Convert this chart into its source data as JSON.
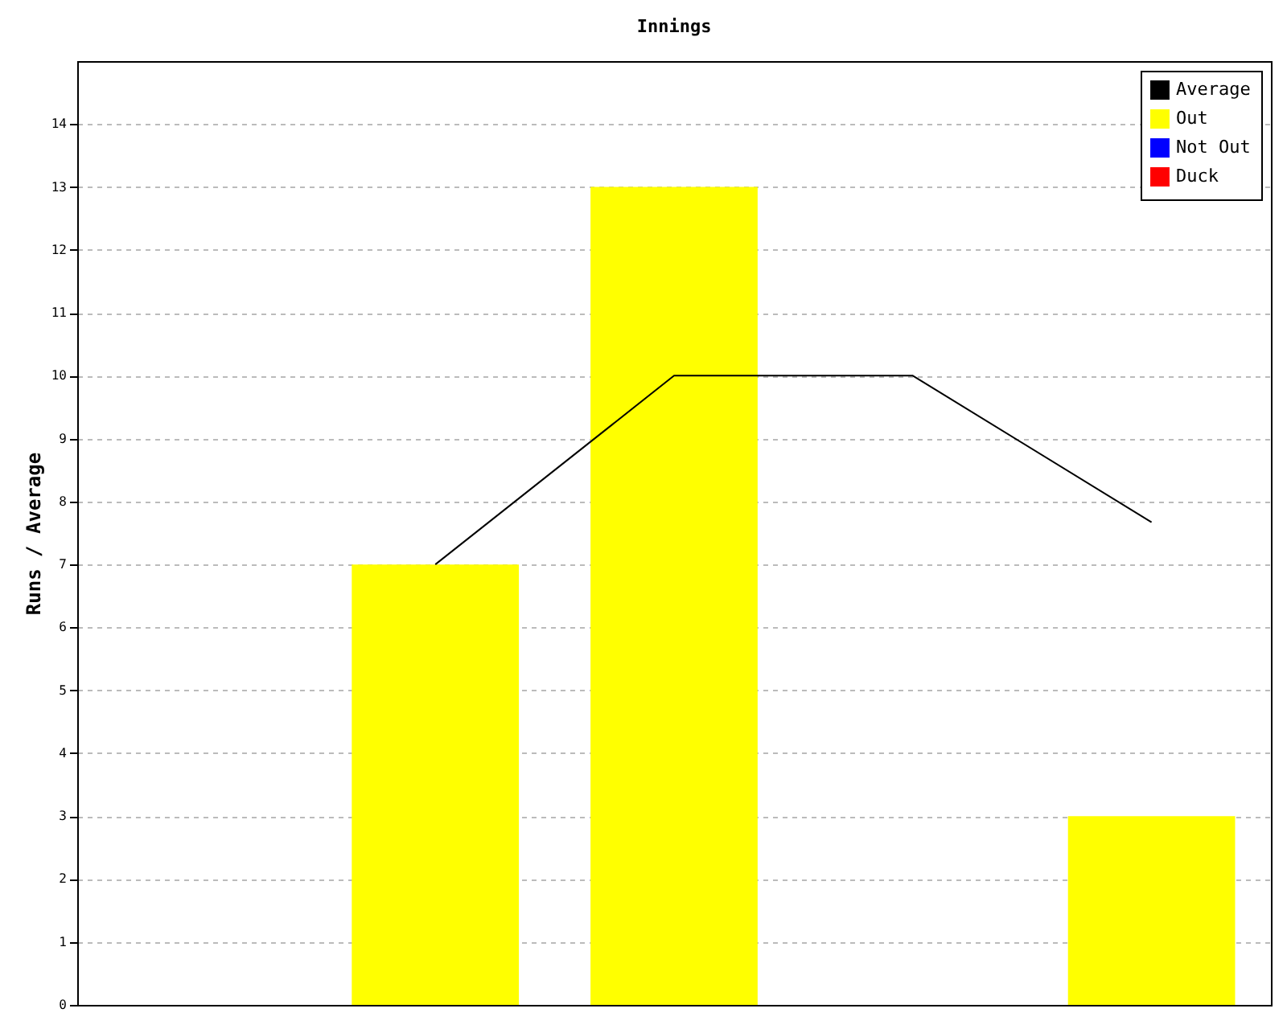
{
  "chart_data": {
    "type": "bar",
    "title": "Innings",
    "ylabel": "Runs / Average",
    "categories": [
      null,
      null,
      null,
      null,
      null
    ],
    "series": [
      {
        "name": "Average",
        "type": "line",
        "color": "#000000",
        "values": [
          null,
          7,
          10,
          10,
          7.67
        ]
      },
      {
        "name": "Out",
        "color": "#ffff00",
        "values": [
          null,
          7,
          13,
          null,
          3
        ]
      },
      {
        "name": "Not Out",
        "color": "#0000ff",
        "values": [
          null,
          null,
          null,
          null,
          null
        ]
      },
      {
        "name": "Duck",
        "color": "#ff0000",
        "values": [
          null,
          null,
          null,
          null,
          null
        ]
      }
    ],
    "ylim": [
      0,
      15
    ],
    "yticks": [
      0,
      1,
      2,
      3,
      4,
      5,
      6,
      7,
      8,
      9,
      10,
      11,
      12,
      13,
      14
    ],
    "grid": "y",
    "legend": "top right",
    "tick_labels": "y"
  }
}
